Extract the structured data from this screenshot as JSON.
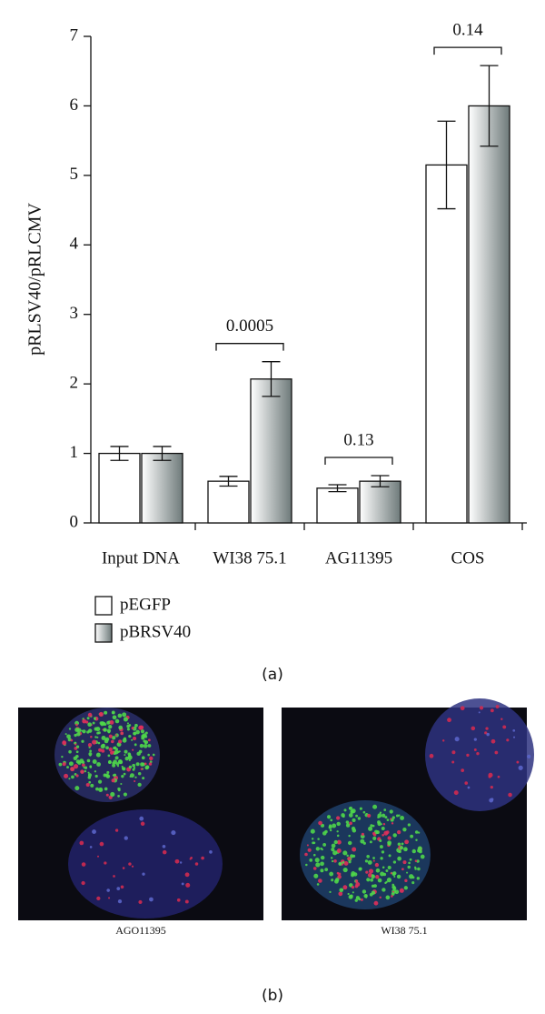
{
  "chart_data": {
    "type": "bar",
    "y_label": "pRLSV40/pRLCMV",
    "categories": [
      "Input DNA",
      "WI38 75.1",
      "AG11395",
      "COS"
    ],
    "series": [
      {
        "name": "pEGFP",
        "color": "#ffffff",
        "values": [
          1.0,
          0.6,
          0.5,
          5.15
        ],
        "errors": [
          0.1,
          0.07,
          0.05,
          0.63
        ]
      },
      {
        "name": "pBRSV40",
        "color": "#6e7a7a",
        "values": [
          1.0,
          2.07,
          0.6,
          6.0
        ],
        "errors": [
          0.1,
          0.25,
          0.08,
          0.58
        ]
      }
    ],
    "annotations": [
      null,
      "0.0005",
      "0.13",
      "0.14"
    ],
    "ylim": [
      0,
      7
    ],
    "yticks": [
      0,
      1,
      2,
      3,
      4,
      5,
      6,
      7
    ],
    "panel_label": "(a)"
  },
  "panel_b": {
    "label": "(b)",
    "images": [
      {
        "caption": "AGO11395"
      },
      {
        "caption": "WI38 75.1"
      }
    ]
  }
}
